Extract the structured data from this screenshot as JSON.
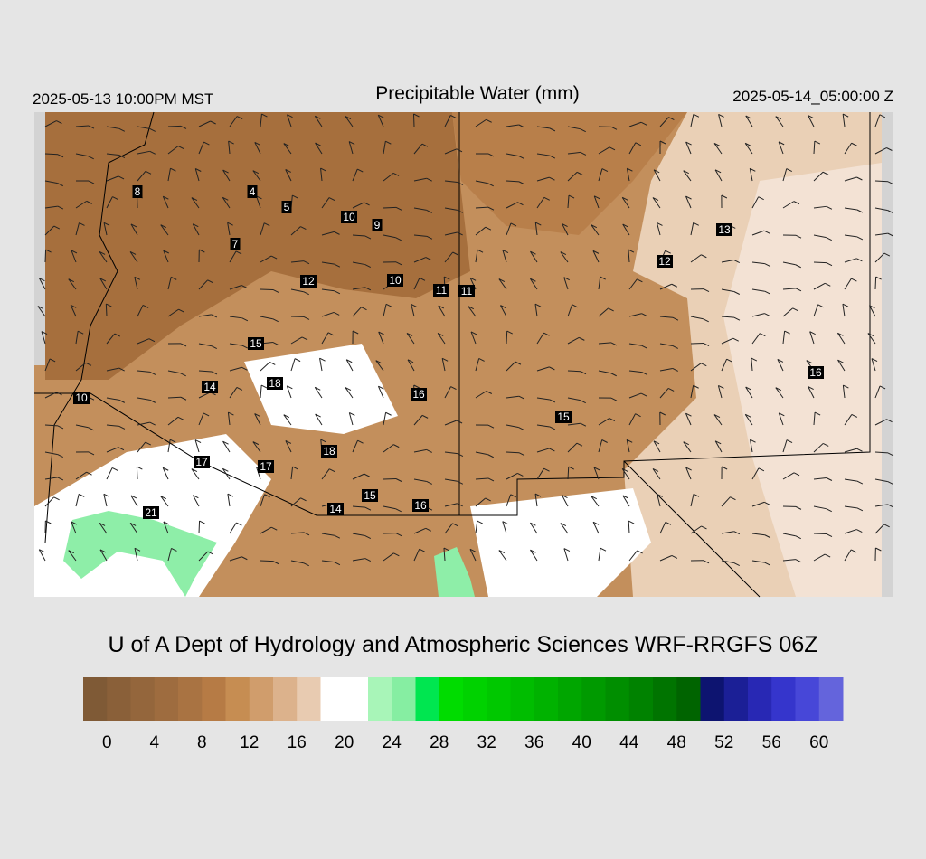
{
  "header": {
    "valid_local": "2025-05-13 10:00PM MST",
    "title": "Precipitable Water (mm)",
    "valid_utc": "2025-05-14_05:00:00 Z"
  },
  "map": {
    "station_values": [
      "8",
      "4",
      "5",
      "10",
      "9",
      "7",
      "12",
      "10",
      "11",
      "11",
      "13",
      "12",
      "15",
      "14",
      "18",
      "16",
      "16",
      "15",
      "10",
      "17",
      "17",
      "18",
      "21",
      "14",
      "15",
      "16"
    ]
  },
  "credit": "U of A Dept of Hydrology and Atmospheric Sciences WRF-RRGFS 06Z",
  "color_scale": {
    "range": [
      -2,
      62
    ],
    "colors": [
      "#7f5a36",
      "#8a6039",
      "#94663c",
      "#9e6c3f",
      "#a97342",
      "#b67b45",
      "#c68d52",
      "#d09d6c",
      "#dcb28c",
      "#e8cbb1",
      "#ffffff",
      "#ffffff",
      "#a8f5b8",
      "#86eea2",
      "#00e650",
      "#00dc00",
      "#00d200",
      "#00c800",
      "#00bd00",
      "#00b200",
      "#00a600",
      "#009a00",
      "#008e00",
      "#008200",
      "#007400",
      "#006400",
      "#0d1470",
      "#1b1f96",
      "#2828b4",
      "#3535cc",
      "#4747d8",
      "#6464dc"
    ],
    "ticks": [
      0,
      4,
      8,
      12,
      16,
      20,
      24,
      28,
      32,
      36,
      40,
      44,
      48,
      52,
      56,
      60
    ]
  }
}
